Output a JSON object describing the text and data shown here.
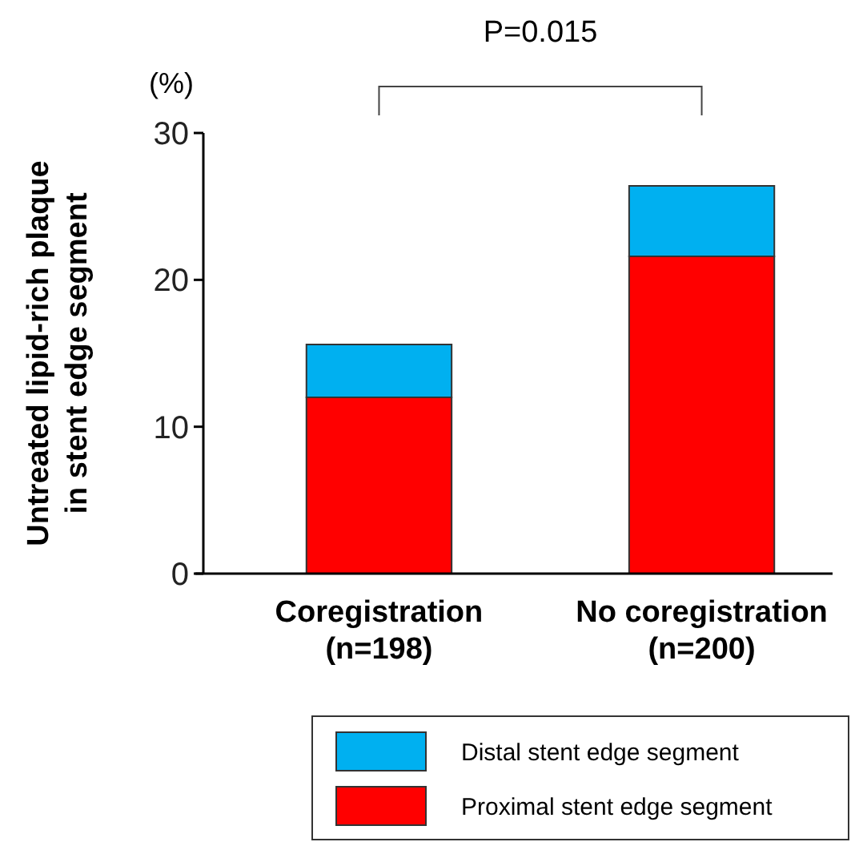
{
  "chart_data": {
    "type": "bar",
    "stacked": true,
    "categories": [
      "Coregistration\n(n=198)",
      "No coregistration\n(n=200)"
    ],
    "ylabel": "Untreated lipid-rich plaque\nin stent edge segment",
    "ylim": [
      0,
      30
    ],
    "yticks": [
      0,
      10,
      20,
      30
    ],
    "grid": false,
    "legend": "bottom",
    "series": [
      {
        "name": "Proximal stent edge segment",
        "color": "#ff0000",
        "values": [
          12.0,
          21.6
        ]
      },
      {
        "name": "Distal stent edge segment",
        "color": "#00b0f0",
        "values": [
          3.6,
          4.8
        ]
      }
    ],
    "annotations": [
      "(%)",
      "P=0.015"
    ]
  }
}
